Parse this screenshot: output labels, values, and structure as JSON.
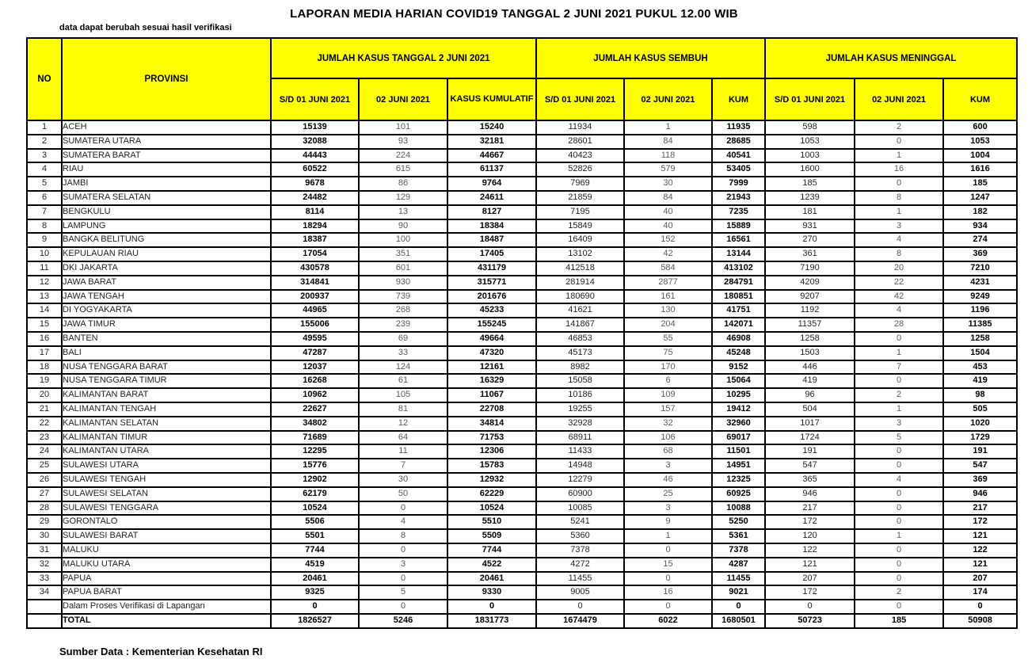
{
  "title": "LAPORAN MEDIA HARIAN COVID19 TANGGAL 2 JUNI 2021 PUKUL 12.00 WIB",
  "note": "data dapat berubah sesuai hasil verifikasi",
  "source": "Sumber Data : Kementerian Kesehatan RI",
  "colors": {
    "header_bg": "#FFFF00",
    "border": "#000000",
    "muted_text": "#595959"
  },
  "table": {
    "col_no": "NO",
    "col_provinsi": "PROVINSI",
    "groups": [
      {
        "label": "JUMLAH KASUS TANGGAL 2 JUNI 2021",
        "cols": [
          "S/D 01 JUNI 2021",
          "02 JUNI 2021",
          "KASUS KUMULATIF"
        ]
      },
      {
        "label": "JUMLAH KASUS SEMBUH",
        "cols": [
          "S/D 01 JUNI 2021",
          "02 JUNI 2021",
          "KUM"
        ]
      },
      {
        "label": "JUMLAH KASUS MENINGGAL",
        "cols": [
          "S/D 01 JUNI 2021",
          "02 JUNI 2021",
          "KUM"
        ]
      }
    ],
    "rows": [
      {
        "no": "1",
        "provinsi": "ACEH",
        "values": [
          "15139",
          "101",
          "15240",
          "11934",
          "1",
          "11935",
          "598",
          "2",
          "600"
        ]
      },
      {
        "no": "2",
        "provinsi": "SUMATERA UTARA",
        "values": [
          "32088",
          "93",
          "32181",
          "28601",
          "84",
          "28685",
          "1053",
          "0",
          "1053"
        ]
      },
      {
        "no": "3",
        "provinsi": "SUMATERA BARAT",
        "values": [
          "44443",
          "224",
          "44667",
          "40423",
          "118",
          "40541",
          "1003",
          "1",
          "1004"
        ]
      },
      {
        "no": "4",
        "provinsi": "RIAU",
        "values": [
          "60522",
          "615",
          "61137",
          "52826",
          "579",
          "53405",
          "1600",
          "16",
          "1616"
        ]
      },
      {
        "no": "5",
        "provinsi": "JAMBI",
        "values": [
          "9678",
          "86",
          "9764",
          "7969",
          "30",
          "7999",
          "185",
          "0",
          "185"
        ]
      },
      {
        "no": "6",
        "provinsi": "SUMATERA SELATAN",
        "values": [
          "24482",
          "129",
          "24611",
          "21859",
          "84",
          "21943",
          "1239",
          "8",
          "1247"
        ]
      },
      {
        "no": "7",
        "provinsi": "BENGKULU",
        "values": [
          "8114",
          "13",
          "8127",
          "7195",
          "40",
          "7235",
          "181",
          "1",
          "182"
        ]
      },
      {
        "no": "8",
        "provinsi": "LAMPUNG",
        "values": [
          "18294",
          "90",
          "18384",
          "15849",
          "40",
          "15889",
          "931",
          "3",
          "934"
        ]
      },
      {
        "no": "9",
        "provinsi": "BANGKA BELITUNG",
        "values": [
          "18387",
          "100",
          "18487",
          "16409",
          "152",
          "16561",
          "270",
          "4",
          "274"
        ]
      },
      {
        "no": "10",
        "provinsi": "KEPULAUAN RIAU",
        "values": [
          "17054",
          "351",
          "17405",
          "13102",
          "42",
          "13144",
          "361",
          "8",
          "369"
        ]
      },
      {
        "no": "11",
        "provinsi": "DKI JAKARTA",
        "values": [
          "430578",
          "601",
          "431179",
          "412518",
          "584",
          "413102",
          "7190",
          "20",
          "7210"
        ]
      },
      {
        "no": "12",
        "provinsi": "JAWA BARAT",
        "values": [
          "314841",
          "930",
          "315771",
          "281914",
          "2877",
          "284791",
          "4209",
          "22",
          "4231"
        ]
      },
      {
        "no": "13",
        "provinsi": "JAWA TENGAH",
        "values": [
          "200937",
          "739",
          "201676",
          "180690",
          "161",
          "180851",
          "9207",
          "42",
          "9249"
        ]
      },
      {
        "no": "14",
        "provinsi": "DI YOGYAKARTA",
        "values": [
          "44965",
          "268",
          "45233",
          "41621",
          "130",
          "41751",
          "1192",
          "4",
          "1196"
        ]
      },
      {
        "no": "15",
        "provinsi": "JAWA TIMUR",
        "values": [
          "155006",
          "239",
          "155245",
          "141867",
          "204",
          "142071",
          "11357",
          "28",
          "11385"
        ]
      },
      {
        "no": "16",
        "provinsi": "BANTEN",
        "values": [
          "49595",
          "69",
          "49664",
          "46853",
          "55",
          "46908",
          "1258",
          "0",
          "1258"
        ]
      },
      {
        "no": "17",
        "provinsi": "BALI",
        "values": [
          "47287",
          "33",
          "47320",
          "45173",
          "75",
          "45248",
          "1503",
          "1",
          "1504"
        ]
      },
      {
        "no": "18",
        "provinsi": "NUSA TENGGARA BARAT",
        "values": [
          "12037",
          "124",
          "12161",
          "8982",
          "170",
          "9152",
          "446",
          "7",
          "453"
        ]
      },
      {
        "no": "19",
        "provinsi": "NUSA TENGGARA TIMUR",
        "values": [
          "16268",
          "61",
          "16329",
          "15058",
          "6",
          "15064",
          "419",
          "0",
          "419"
        ]
      },
      {
        "no": "20",
        "provinsi": "KALIMANTAN BARAT",
        "values": [
          "10962",
          "105",
          "11067",
          "10186",
          "109",
          "10295",
          "96",
          "2",
          "98"
        ]
      },
      {
        "no": "21",
        "provinsi": "KALIMANTAN TENGAH",
        "values": [
          "22627",
          "81",
          "22708",
          "19255",
          "157",
          "19412",
          "504",
          "1",
          "505"
        ]
      },
      {
        "no": "22",
        "provinsi": "KALIMANTAN SELATAN",
        "values": [
          "34802",
          "12",
          "34814",
          "32928",
          "32",
          "32960",
          "1017",
          "3",
          "1020"
        ]
      },
      {
        "no": "23",
        "provinsi": "KALIMANTAN TIMUR",
        "values": [
          "71689",
          "64",
          "71753",
          "68911",
          "106",
          "69017",
          "1724",
          "5",
          "1729"
        ]
      },
      {
        "no": "24",
        "provinsi": "KALIMANTAN UTARA",
        "values": [
          "12295",
          "11",
          "12306",
          "11433",
          "68",
          "11501",
          "191",
          "0",
          "191"
        ]
      },
      {
        "no": "25",
        "provinsi": "SULAWESI UTARA",
        "values": [
          "15776",
          "7",
          "15783",
          "14948",
          "3",
          "14951",
          "547",
          "0",
          "547"
        ]
      },
      {
        "no": "26",
        "provinsi": "SULAWESI TENGAH",
        "values": [
          "12902",
          "30",
          "12932",
          "12279",
          "46",
          "12325",
          "365",
          "4",
          "369"
        ]
      },
      {
        "no": "27",
        "provinsi": "SULAWESI SELATAN",
        "values": [
          "62179",
          "50",
          "62229",
          "60900",
          "25",
          "60925",
          "946",
          "0",
          "946"
        ]
      },
      {
        "no": "28",
        "provinsi": "SULAWESI TENGGARA",
        "values": [
          "10524",
          "0",
          "10524",
          "10085",
          "3",
          "10088",
          "217",
          "0",
          "217"
        ]
      },
      {
        "no": "29",
        "provinsi": "GORONTALO",
        "values": [
          "5506",
          "4",
          "5510",
          "5241",
          "9",
          "5250",
          "172",
          "0",
          "172"
        ]
      },
      {
        "no": "30",
        "provinsi": "SULAWESI BARAT",
        "values": [
          "5501",
          "8",
          "5509",
          "5360",
          "1",
          "5361",
          "120",
          "1",
          "121"
        ]
      },
      {
        "no": "31",
        "provinsi": "MALUKU",
        "values": [
          "7744",
          "0",
          "7744",
          "7378",
          "0",
          "7378",
          "122",
          "0",
          "122"
        ]
      },
      {
        "no": "32",
        "provinsi": "MALUKU UTARA",
        "values": [
          "4519",
          "3",
          "4522",
          "4272",
          "15",
          "4287",
          "121",
          "0",
          "121"
        ]
      },
      {
        "no": "33",
        "provinsi": "PAPUA",
        "values": [
          "20461",
          "0",
          "20461",
          "11455",
          "0",
          "11455",
          "207",
          "0",
          "207"
        ]
      },
      {
        "no": "34",
        "provinsi": "PAPUA BARAT",
        "values": [
          "9325",
          "5",
          "9330",
          "9005",
          "16",
          "9021",
          "172",
          "2",
          "174"
        ]
      },
      {
        "no": "",
        "provinsi": "Dalam Proses Verifikasi di Lapangan",
        "values": [
          "0",
          "0",
          "0",
          "0",
          "0",
          "0",
          "0",
          "0",
          "0"
        ]
      }
    ],
    "total": {
      "no": "",
      "provinsi": "TOTAL",
      "values": [
        "1826527",
        "5246",
        "1831773",
        "1674479",
        "6022",
        "1680501",
        "50723",
        "185",
        "50908"
      ]
    }
  }
}
